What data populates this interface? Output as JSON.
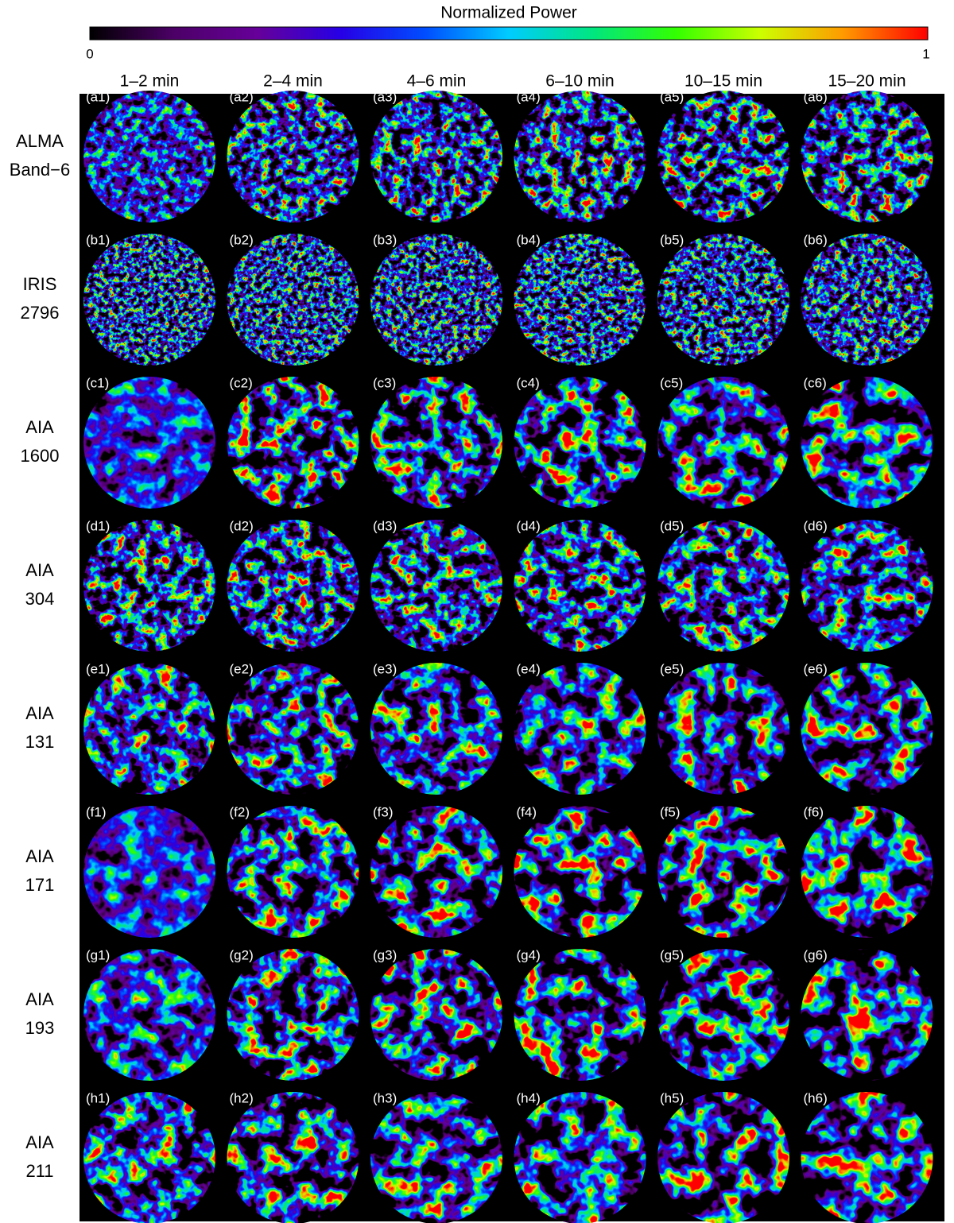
{
  "colorbar": {
    "title": "Normalized Power",
    "min": 0,
    "max": 1,
    "colors": [
      "#000000",
      "#4c0066",
      "#660099",
      "#2600e6",
      "#004dff",
      "#00ccff",
      "#00e680",
      "#33ff00",
      "#ccff00",
      "#ff9900",
      "#ff0000"
    ]
  },
  "columns": [
    "1–2 min",
    "2–4 min",
    "4–6 min",
    "6–10 min",
    "10–15 min",
    "15–20 min"
  ],
  "rows": [
    {
      "label": [
        "ALMA",
        "Band−6"
      ],
      "panels": [
        "(a1)",
        "(a2)",
        "(a3)",
        "(a4)",
        "(a5)",
        "(a6)"
      ]
    },
    {
      "label": [
        "IRIS",
        "2796"
      ],
      "panels": [
        "(b1)",
        "(b2)",
        "(b3)",
        "(b4)",
        "(b5)",
        "(b6)"
      ]
    },
    {
      "label": [
        "AIA",
        "1600"
      ],
      "panels": [
        "(c1)",
        "(c2)",
        "(c3)",
        "(c4)",
        "(c5)",
        "(c6)"
      ]
    },
    {
      "label": [
        "AIA",
        "304"
      ],
      "panels": [
        "(d1)",
        "(d2)",
        "(d3)",
        "(d4)",
        "(d5)",
        "(d6)"
      ]
    },
    {
      "label": [
        "AIA",
        "131"
      ],
      "panels": [
        "(e1)",
        "(e2)",
        "(e3)",
        "(e4)",
        "(e5)",
        "(e6)"
      ]
    },
    {
      "label": [
        "AIA",
        "171"
      ],
      "panels": [
        "(f1)",
        "(f2)",
        "(f3)",
        "(f4)",
        "(f5)",
        "(f6)"
      ]
    },
    {
      "label": [
        "AIA",
        "193"
      ],
      "panels": [
        "(g1)",
        "(g2)",
        "(g3)",
        "(g4)",
        "(g5)",
        "(g6)"
      ]
    },
    {
      "label": [
        "AIA",
        "211"
      ],
      "panels": [
        "(h1)",
        "(h2)",
        "(h3)",
        "(h4)",
        "(h5)",
        "(h6)"
      ]
    }
  ]
}
